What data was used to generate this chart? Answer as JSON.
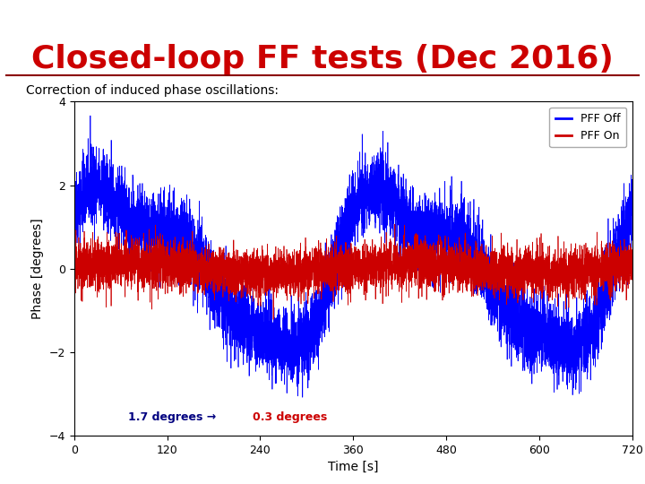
{
  "title": "Closed-loop FF tests (Dec 2016)",
  "title_color": "#cc0000",
  "title_fontsize": 26,
  "subtitle": "Correction of induced phase oscillations:",
  "subtitle_fontsize": 10,
  "xlabel": "Time [s]",
  "ylabel": "Phase [degrees]",
  "xlim": [
    0,
    720
  ],
  "ylim": [
    -4,
    4
  ],
  "xticks": [
    0,
    120,
    240,
    360,
    480,
    600,
    720
  ],
  "yticks": [
    -4,
    -2,
    0,
    2,
    4
  ],
  "blue_color": "#0000ff",
  "red_color": "#cc0000",
  "blue_label": "PFF Off",
  "red_label": "PFF On",
  "n_points": 7200,
  "seed": 42,
  "background_color": "#ffffff",
  "divider_color": "#8b0000"
}
